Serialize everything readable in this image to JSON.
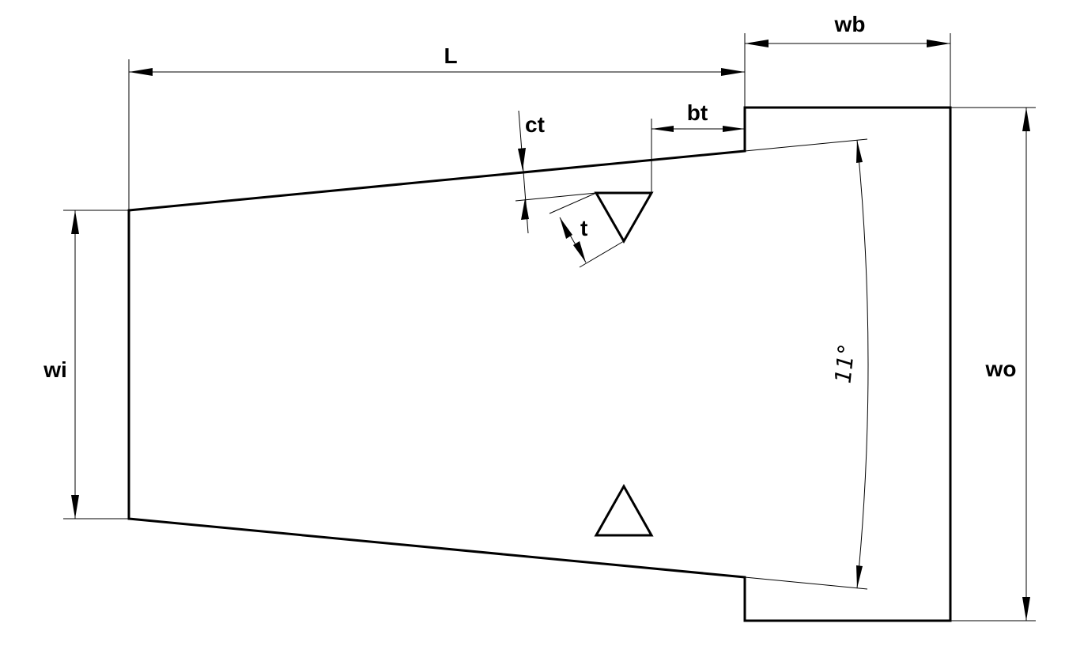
{
  "labels": {
    "L": "L",
    "wb": "wb",
    "bt": "bt",
    "ct": "ct",
    "t": "t",
    "wi": "wi",
    "wo": "wo",
    "angle": "11°"
  },
  "colors": {
    "stroke": "#000000",
    "background": "#ffffff"
  }
}
